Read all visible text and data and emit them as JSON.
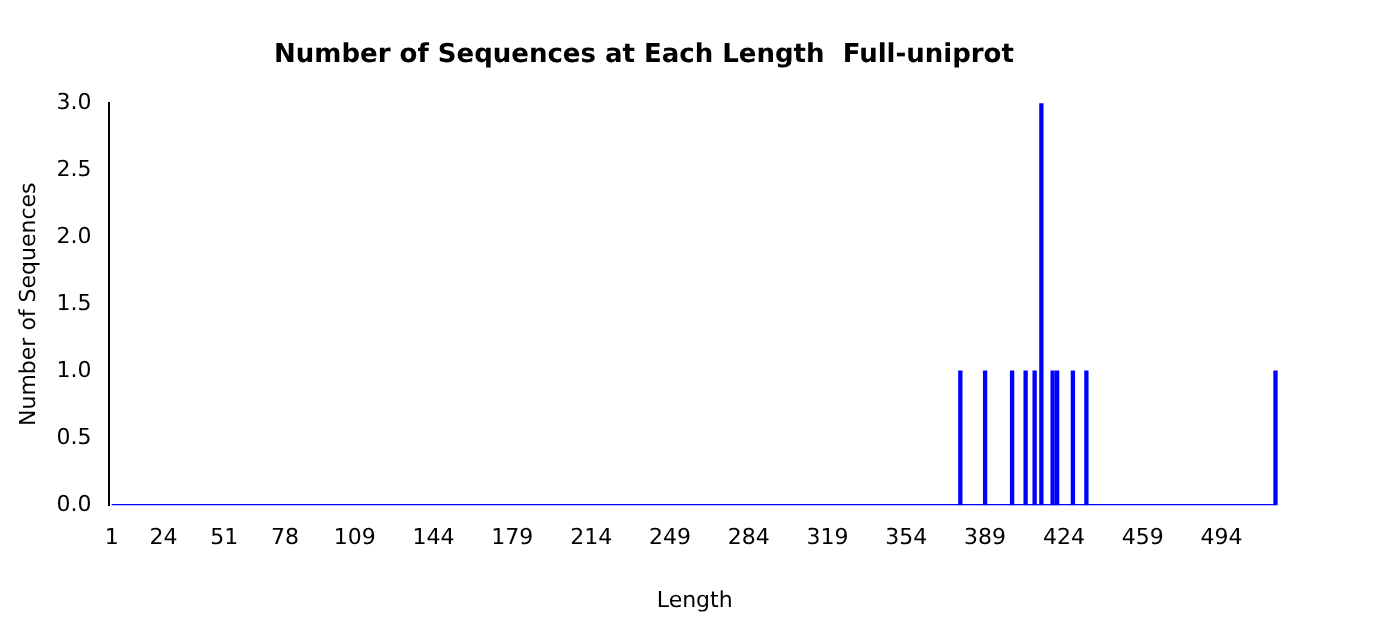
{
  "chart_data": {
    "type": "bar",
    "title": "Number of Sequences at Each Length  Full-uniprot",
    "xlabel": "Length",
    "ylabel": "Number of Sequences",
    "x": [
      378,
      389,
      401,
      407,
      411,
      414,
      419,
      421,
      428,
      434,
      518
    ],
    "series": [
      {
        "color": "#0000ff",
        "values": [
          1,
          1,
          1,
          1,
          1,
          3,
          1,
          1,
          1,
          1,
          1
        ]
      },
      {
        "type": "line",
        "color": "#0000ff",
        "x": [
          1,
          518
        ],
        "values": [
          0,
          0
        ]
      }
    ],
    "xlim": [
      0,
      520
    ],
    "xticks": [
      1,
      24,
      51,
      78,
      109,
      144,
      179,
      214,
      249,
      284,
      319,
      354,
      389,
      424,
      459,
      494
    ],
    "ylim": [
      0,
      3
    ],
    "yticks": [
      {
        "value": 0,
        "label": "0.0"
      },
      0.5,
      {
        "value": 1,
        "label": "1.0"
      },
      1.5,
      {
        "value": 2,
        "label": "2.0"
      },
      2.5,
      {
        "value": 3,
        "label": "3.0"
      }
    ],
    "marker": "none",
    "grid": false,
    "legend": false
  }
}
